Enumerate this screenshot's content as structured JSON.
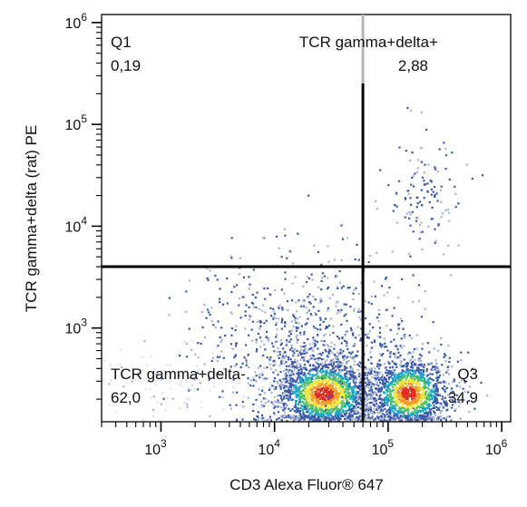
{
  "chart_data": {
    "type": "scatter",
    "title": "",
    "xlabel": "CD3 Alexa Fluor® 647",
    "ylabel": "TCR gamma+delta (rat) PE",
    "x_scale": "log",
    "y_scale": "log",
    "xlim": [
      300,
      1200000
    ],
    "ylim": [
      120,
      1200000
    ],
    "x_ticks": [
      {
        "value": 1000,
        "base": "10",
        "exp": "3"
      },
      {
        "value": 10000,
        "base": "10",
        "exp": "4"
      },
      {
        "value": 100000,
        "base": "10",
        "exp": "5"
      },
      {
        "value": 1000000,
        "base": "10",
        "exp": "6"
      }
    ],
    "y_ticks": [
      {
        "value": 1000,
        "base": "10",
        "exp": "3"
      },
      {
        "value": 10000,
        "base": "10",
        "exp": "4"
      },
      {
        "value": 100000,
        "base": "10",
        "exp": "5"
      },
      {
        "value": 1000000,
        "base": "10",
        "exp": "6"
      }
    ],
    "gates": {
      "x": 60000,
      "y": 4000
    },
    "quadrants": [
      {
        "label": "Q1",
        "value": "0,19",
        "position": "top-left"
      },
      {
        "label": "TCR gamma+delta+",
        "value": "2,88",
        "position": "top-right"
      },
      {
        "label": "TCR gamma+delta-",
        "value": "62,0",
        "position": "bottom-left"
      },
      {
        "label": "Q3",
        "value": "34,9",
        "position": "bottom-right"
      }
    ],
    "populations": [
      {
        "cx": 27000,
        "cy": 230,
        "weight": 0.45
      },
      {
        "cx": 150000,
        "cy": 230,
        "weight": 0.32
      },
      {
        "cx": 18000,
        "cy": 900,
        "weight": 0.17
      },
      {
        "cx": 200000,
        "cy": 20000,
        "weight": 0.03
      },
      {
        "cx": 1500,
        "cy": 300,
        "weight": 0.03
      }
    ],
    "grid": false,
    "legend": "none",
    "density_colors": [
      "#dde3ef",
      "#a9b5d3",
      "#3a5aa8",
      "#1aa7c4",
      "#4cc06a",
      "#f0e43a",
      "#f39a28",
      "#e02a20"
    ]
  }
}
